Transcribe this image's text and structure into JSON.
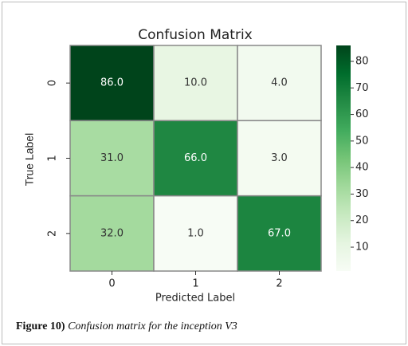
{
  "chart_data": {
    "type": "heatmap",
    "title": "Confusion Matrix",
    "x_label": "Predicted Label",
    "y_label": "True Label",
    "x_categories": [
      "0",
      "1",
      "2"
    ],
    "y_categories": [
      "0",
      "1",
      "2"
    ],
    "values": [
      [
        86,
        10,
        4
      ],
      [
        31,
        66,
        3
      ],
      [
        32,
        1,
        67
      ]
    ],
    "value_labels": [
      [
        "86.0",
        "10.0",
        "4.0"
      ],
      [
        "31.0",
        "66.0",
        "3.0"
      ],
      [
        "32.0",
        "1.0",
        "67.0"
      ]
    ],
    "colormap": [
      "#f7fcf5",
      "#e5f5e0",
      "#c7e9c0",
      "#a1d99b",
      "#74c476",
      "#41ab5d",
      "#238b45",
      "#006d2c",
      "#00441b"
    ],
    "clim": [
      1,
      86
    ],
    "cticks": [
      10,
      20,
      30,
      40,
      50,
      60,
      70,
      80
    ]
  },
  "caption": {
    "label": "Figure 10)",
    "text": "Confusion matrix for the inception V3"
  }
}
